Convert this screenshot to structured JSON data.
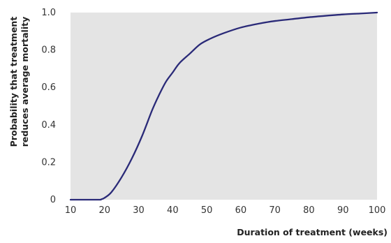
{
  "chart_data": {
    "type": "line",
    "title": "",
    "xlabel": "Duration of treatment (weeks)",
    "ylabel": [
      "Probability that treatment",
      "reduces average mortality"
    ],
    "xlim": [
      10,
      100
    ],
    "ylim": [
      0,
      1.0
    ],
    "x_ticks": [
      "10",
      "20",
      "30",
      "40",
      "50",
      "60",
      "70",
      "80",
      "90",
      "100"
    ],
    "y_ticks": [
      "0",
      "0.2",
      "0.4",
      "0.6",
      "0.8",
      "1.0"
    ],
    "grid": false,
    "colors": {
      "plot_background": "#e4e4e4",
      "line": "#2a2a78"
    },
    "series": [
      {
        "x": [
          10,
          18,
          19,
          20,
          22,
          25,
          28,
          31,
          34,
          36,
          38,
          40,
          42,
          45,
          48,
          51,
          55,
          60,
          65,
          70,
          75,
          80,
          85,
          90,
          95,
          100
        ],
        "y": [
          0,
          0,
          0.002,
          0.01,
          0.04,
          0.12,
          0.22,
          0.34,
          0.48,
          0.56,
          0.63,
          0.68,
          0.73,
          0.78,
          0.83,
          0.86,
          0.89,
          0.92,
          0.94,
          0.955,
          0.965,
          0.975,
          0.983,
          0.99,
          0.995,
          1.0
        ]
      }
    ]
  }
}
